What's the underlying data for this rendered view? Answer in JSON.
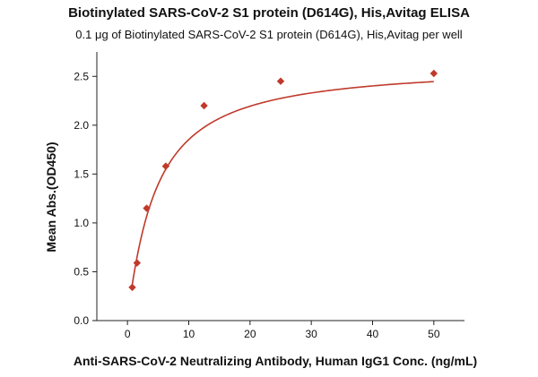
{
  "chart_data": {
    "type": "scatter",
    "title": "Biotinylated SARS-CoV-2 S1 protein (D614G), His,Avitag ELISA",
    "subtitle": "0.1 μg of Biotinylated SARS-CoV-2 S1 protein (D614G), His,Avitag per well",
    "xlabel": "Anti-SARS-CoV-2 Neutralizing Antibody, Human IgG1 Conc. (ng/mL)",
    "ylabel": "Mean Abs.(OD450)",
    "xlim": [
      -5,
      55
    ],
    "ylim": [
      0,
      2.75
    ],
    "xticks": [
      0,
      10,
      20,
      30,
      40,
      50
    ],
    "yticks": [
      0.0,
      0.5,
      1.0,
      1.5,
      2.0,
      2.5
    ],
    "grid": false,
    "color": "#c0392b",
    "series": [
      {
        "x": [
          0.78,
          1.56,
          3.13,
          6.25,
          12.5,
          25,
          50
        ],
        "y": [
          0.34,
          0.59,
          1.15,
          1.58,
          2.2,
          2.45,
          2.53
        ],
        "marker": "diamond",
        "fit": "4PL"
      }
    ]
  }
}
